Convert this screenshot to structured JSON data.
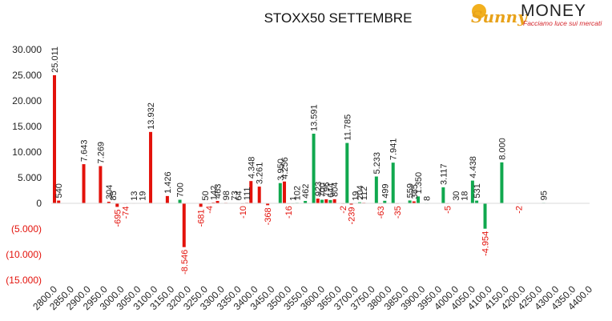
{
  "logo": {
    "brand_part1": "Sunny",
    "brand_part2": "MONEY",
    "tagline": "Facciamo luce sui mercati"
  },
  "chart_data": {
    "type": "bar",
    "title": "STOXX50 SETTEMBRE",
    "xlabel": "",
    "ylabel": "",
    "ylim": [
      -15000,
      30000
    ],
    "yticks": [
      {
        "value": 30000,
        "label": "30.000"
      },
      {
        "value": 25000,
        "label": "25.000"
      },
      {
        "value": 20000,
        "label": "20.000"
      },
      {
        "value": 15000,
        "label": "15.000"
      },
      {
        "value": 10000,
        "label": "10.000"
      },
      {
        "value": 5000,
        "label": "5.000"
      },
      {
        "value": 0,
        "label": "0"
      },
      {
        "value": -5000,
        "label": "(5.000)"
      },
      {
        "value": -10000,
        "label": "(10.000)"
      },
      {
        "value": -15000,
        "label": "(15.000)"
      }
    ],
    "categories": [
      "2800.0",
      "2850.0",
      "2900.0",
      "2950.0",
      "3000.0",
      "3050.0",
      "3100.0",
      "3150.0",
      "3200.0",
      "3250.0",
      "3300.0",
      "3350.0",
      "3400.0",
      "3450.0",
      "3500.0",
      "3550.0",
      "3600.0",
      "3650.0",
      "3700.0",
      "3750.0",
      "3800.0",
      "3850.0",
      "3900.0",
      "3950.0",
      "4000.0",
      "4050.0",
      "4100.0",
      "4150.0",
      "4200.0",
      "4250.0",
      "4300.0",
      "4350.0",
      "4400.0"
    ],
    "colors": {
      "put": "#e3120b",
      "call": "#10a84e",
      "positive_label": "#222222",
      "negative_label": "#e3120b"
    },
    "bars": [
      {
        "x": 2800,
        "value": 25011,
        "label": "25.011",
        "color": "put"
      },
      {
        "x": 2812.5,
        "value": 540,
        "label": "540",
        "color": "put"
      },
      {
        "x": 2887.5,
        "value": 7643,
        "label": "7.643",
        "color": "put"
      },
      {
        "x": 2937.5,
        "value": 7269,
        "label": "7.269",
        "color": "put"
      },
      {
        "x": 2962.5,
        "value": 304,
        "label": "304",
        "color": "put"
      },
      {
        "x": 2975,
        "value": 85,
        "label": "85",
        "color": "put"
      },
      {
        "x": 2987.5,
        "value": -695,
        "label": "-695",
        "color": "put"
      },
      {
        "x": 3012.5,
        "value": -74,
        "label": "-74",
        "color": "put"
      },
      {
        "x": 3037.5,
        "value": 13,
        "label": "13",
        "color": "put"
      },
      {
        "x": 3062.5,
        "value": 19,
        "label": "19",
        "color": "put"
      },
      {
        "x": 3087.5,
        "value": 13932,
        "label": "13.932",
        "color": "put"
      },
      {
        "x": 3137.5,
        "value": 1426,
        "label": "1.426",
        "color": "put"
      },
      {
        "x": 3175,
        "value": 700,
        "label": "700",
        "color": "call"
      },
      {
        "x": 3187.5,
        "value": -8546,
        "label": "-8.546",
        "color": "put"
      },
      {
        "x": 3237.5,
        "value": -681,
        "label": "-681",
        "color": "put"
      },
      {
        "x": 3250,
        "value": 50,
        "label": "50",
        "color": "put"
      },
      {
        "x": 3262.5,
        "value": -4,
        "label": "-4",
        "color": "put"
      },
      {
        "x": 3275,
        "value": 142,
        "label": "142",
        "color": "put"
      },
      {
        "x": 3287.5,
        "value": 463,
        "label": "463",
        "color": "put"
      },
      {
        "x": 3312.5,
        "value": 98,
        "label": "98",
        "color": "put"
      },
      {
        "x": 3337.5,
        "value": 73,
        "label": "73",
        "color": "call"
      },
      {
        "x": 3350,
        "value": 64,
        "label": "64",
        "color": "put"
      },
      {
        "x": 3362.5,
        "value": -10,
        "label": "-10",
        "color": "put"
      },
      {
        "x": 3375,
        "value": 111,
        "label": "111",
        "color": "put"
      },
      {
        "x": 3387.5,
        "value": 4348,
        "label": "4.348",
        "color": "put"
      },
      {
        "x": 3412.5,
        "value": 3261,
        "label": "3.261",
        "color": "put"
      },
      {
        "x": 3437.5,
        "value": -368,
        "label": "-368",
        "color": "put"
      },
      {
        "x": 3475,
        "value": 3950,
        "label": "3.950",
        "color": "call"
      },
      {
        "x": 3487.5,
        "value": 4256,
        "label": "4.256",
        "color": "put"
      },
      {
        "x": 3500,
        "value": -16,
        "label": "-16",
        "color": "put"
      },
      {
        "x": 3512.5,
        "value": 1,
        "label": "1",
        "color": "call"
      },
      {
        "x": 3525,
        "value": 102,
        "label": "102",
        "color": "call"
      },
      {
        "x": 3550,
        "value": 462,
        "label": "462",
        "color": "call"
      },
      {
        "x": 3575,
        "value": 13591,
        "label": "13.591",
        "color": "call"
      },
      {
        "x": 3587.5,
        "value": 923,
        "label": "923",
        "color": "put"
      },
      {
        "x": 3600,
        "value": 700,
        "label": "700",
        "color": "call"
      },
      {
        "x": 3612.5,
        "value": 796,
        "label": "796",
        "color": "put"
      },
      {
        "x": 3625,
        "value": 644,
        "label": "644",
        "color": "call"
      },
      {
        "x": 3637.5,
        "value": 804,
        "label": "804",
        "color": "put"
      },
      {
        "x": 3662.5,
        "value": -2,
        "label": "-2",
        "color": "put"
      },
      {
        "x": 3675,
        "value": 11785,
        "label": "11.785",
        "color": "call"
      },
      {
        "x": 3687.5,
        "value": -239,
        "label": "-239",
        "color": "put"
      },
      {
        "x": 3700,
        "value": 19,
        "label": "19",
        "color": "call"
      },
      {
        "x": 3712.5,
        "value": 204,
        "label": "204",
        "color": "call"
      },
      {
        "x": 3725,
        "value": 112,
        "label": "112",
        "color": "put"
      },
      {
        "x": 3762.5,
        "value": 5233,
        "label": "5.233",
        "color": "call"
      },
      {
        "x": 3775,
        "value": -63,
        "label": "-63",
        "color": "put"
      },
      {
        "x": 3787.5,
        "value": 499,
        "label": "499",
        "color": "call"
      },
      {
        "x": 3812.5,
        "value": 7941,
        "label": "7.941",
        "color": "call"
      },
      {
        "x": 3825,
        "value": -35,
        "label": "-35",
        "color": "put"
      },
      {
        "x": 3862.5,
        "value": 559,
        "label": "559",
        "color": "call"
      },
      {
        "x": 3875,
        "value": 385,
        "label": "385",
        "color": "put"
      },
      {
        "x": 3887.5,
        "value": 1350,
        "label": "1.350",
        "color": "call"
      },
      {
        "x": 3912.5,
        "value": 8,
        "label": "8",
        "color": "call"
      },
      {
        "x": 3962.5,
        "value": 3117,
        "label": "3.117",
        "color": "call"
      },
      {
        "x": 3975,
        "value": -5,
        "label": "-5",
        "color": "put"
      },
      {
        "x": 4000,
        "value": 30,
        "label": "30",
        "color": "call"
      },
      {
        "x": 4025,
        "value": 18,
        "label": "18",
        "color": "call"
      },
      {
        "x": 4050,
        "value": 4438,
        "label": "4.438",
        "color": "call"
      },
      {
        "x": 4062.5,
        "value": 531,
        "label": "531",
        "color": "call"
      },
      {
        "x": 4087.5,
        "value": -4954,
        "label": "-4.954",
        "color": "call"
      },
      {
        "x": 4137.5,
        "value": 8000,
        "label": "8.000",
        "color": "call"
      },
      {
        "x": 4187.5,
        "value": -2,
        "label": "-2",
        "color": "put"
      },
      {
        "x": 4262.5,
        "value": 95,
        "label": "95",
        "color": "call"
      }
    ]
  }
}
